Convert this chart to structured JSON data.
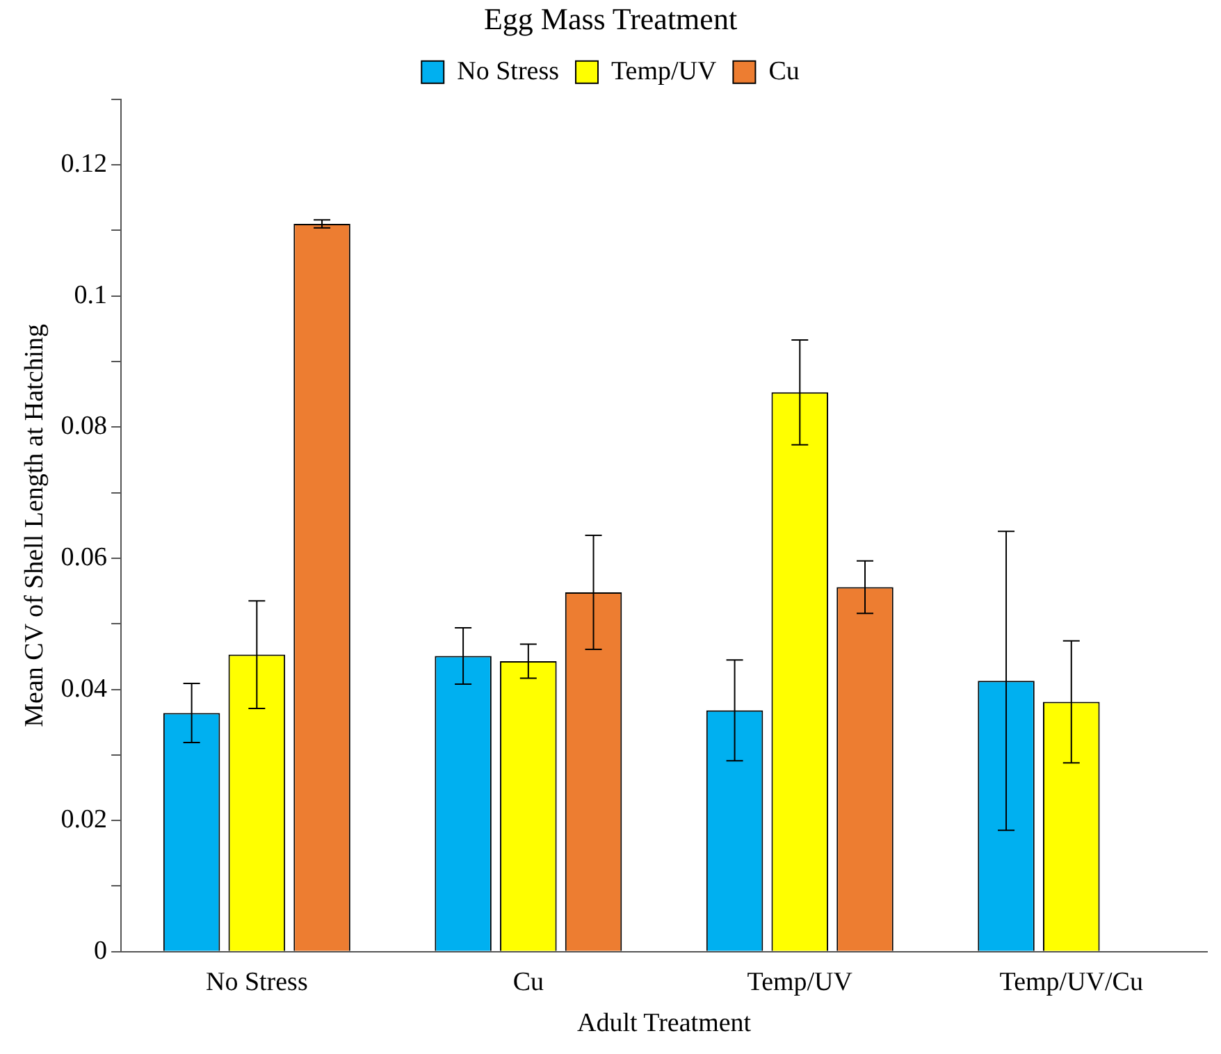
{
  "chart_data": {
    "type": "bar",
    "legend_title": "Egg Mass Treatment",
    "xlabel": "Adult Treatment",
    "ylabel": "Mean CV of Shell Length at Hatching",
    "categories": [
      "No Stress",
      "Cu",
      "Temp/UV",
      "Temp/UV/Cu"
    ],
    "series": [
      {
        "name": "No Stress",
        "color": "#00b0f0",
        "values": [
          0.0364,
          0.0451,
          0.0368,
          0.0413
        ],
        "errors": [
          0.0045,
          0.0043,
          0.0077,
          0.0228
        ]
      },
      {
        "name": "Temp/UV",
        "color": "#ffff00",
        "values": [
          0.0453,
          0.0443,
          0.0853,
          0.0381
        ],
        "errors": [
          0.0082,
          0.0026,
          0.008,
          0.0093
        ]
      },
      {
        "name": "Cu",
        "color": "#ed7d31",
        "values": [
          0.111,
          0.0548,
          0.0556,
          null
        ],
        "errors": [
          0.0006,
          0.0087,
          0.004,
          null
        ]
      }
    ],
    "ylim": [
      0,
      0.13
    ],
    "yticks": [
      0,
      {
        "value": 0.01,
        "label": null
      },
      0.02,
      {
        "value": 0.03,
        "label": null
      },
      0.04,
      {
        "value": 0.05,
        "label": null
      },
      0.06,
      {
        "value": 0.07,
        "label": null
      },
      0.08,
      {
        "value": 0.09,
        "label": null
      },
      0.1,
      {
        "value": 0.11,
        "label": null
      },
      0.12,
      {
        "value": 0.13,
        "label": null
      }
    ],
    "grid": false,
    "legend": "top"
  }
}
